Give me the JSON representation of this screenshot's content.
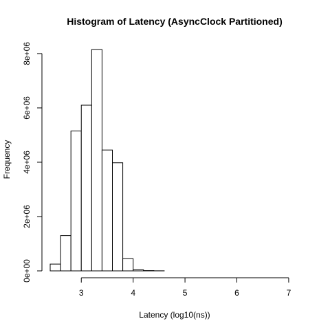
{
  "chart_data": {
    "type": "bar",
    "title": "Histogram of Latency (AsyncClock Partitioned)",
    "xlabel": "Latency (log10(ns))",
    "ylabel": "Frequency",
    "bin_edges": [
      2.4,
      2.6,
      2.8,
      3.0,
      3.2,
      3.4,
      3.6,
      3.8,
      4.0,
      4.2,
      4.4,
      4.6,
      4.8,
      5.0,
      5.2,
      5.4,
      5.6,
      5.8,
      6.0,
      6.2,
      6.4,
      6.6,
      6.8,
      7.0,
      7.2
    ],
    "values": [
      250000,
      1300000,
      5150000,
      6100000,
      8150000,
      4450000,
      3980000,
      450000,
      40000,
      10000,
      3000,
      0,
      0,
      0,
      0,
      0,
      0,
      0,
      0,
      0,
      0,
      0,
      0,
      0
    ],
    "xlim": [
      2.4,
      7.2
    ],
    "ylim": [
      0,
      8150000
    ],
    "x_ticks": [
      {
        "value": 3,
        "label": "3"
      },
      {
        "value": 4,
        "label": "4"
      },
      {
        "value": 5,
        "label": "5"
      },
      {
        "value": 6,
        "label": "6"
      },
      {
        "value": 7,
        "label": "7"
      }
    ],
    "y_ticks": [
      {
        "value": 0,
        "label": "0e+00"
      },
      {
        "value": 2000000,
        "label": "2e+06"
      },
      {
        "value": 4000000,
        "label": "4e+06"
      },
      {
        "value": 6000000,
        "label": "6e+06"
      },
      {
        "value": 8000000,
        "label": "8e+06"
      }
    ],
    "grid": false,
    "legend": "none",
    "bar_fill": "#ffffff",
    "bar_stroke": "#000000"
  }
}
